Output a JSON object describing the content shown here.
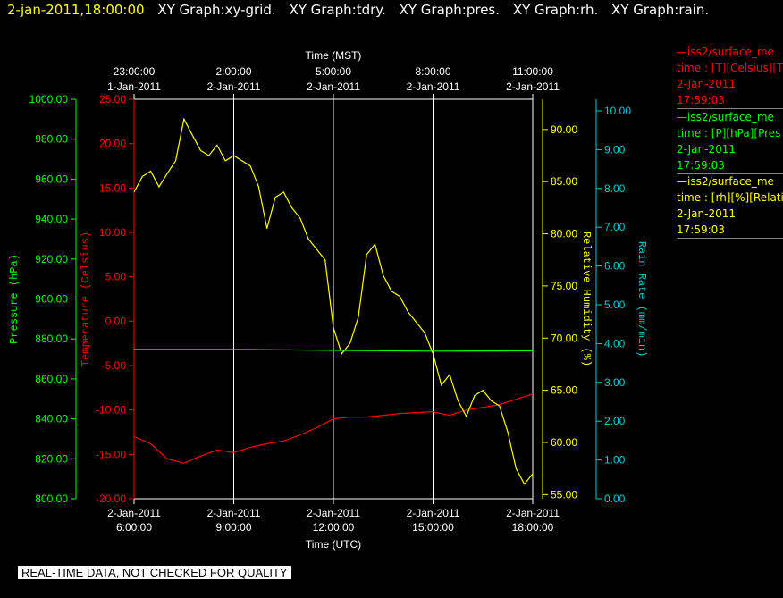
{
  "header": {
    "time": "2-jan-2011,18:00:00",
    "graphs": [
      "XY Graph:xy-grid.",
      "XY Graph:tdry.",
      "XY Graph:pres.",
      "XY Graph:rh.",
      "XY Graph:rain."
    ]
  },
  "quality_notice": "REAL-TIME DATA, NOT CHECKED FOR QUALITY",
  "legend": [
    {
      "line": "—iss2/surface_me",
      "desc": "time : [T][Celsius][T",
      "date": "2-Jan-2011",
      "time": "17:59:03",
      "color": "#ff0000"
    },
    {
      "line": "—iss2/surface_me",
      "desc": "time : [P][hPa][Pres",
      "date": "2-Jan-2011",
      "time": "17:59:03",
      "color": "#00ff00"
    },
    {
      "line": "—iss2/surface_me",
      "desc": "time : [rh][%][Relati",
      "date": "2-Jan-2011",
      "time": "17:59:03",
      "color": "#ffff00"
    }
  ],
  "chart_data": {
    "type": "line",
    "x_bottom": {
      "label": "Time (UTC)",
      "range": [
        "2011-01-02 06:00",
        "2011-01-02 18:00"
      ],
      "ticks": [
        {
          "date": "2-Jan-2011",
          "time": "6:00:00"
        },
        {
          "date": "2-Jan-2011",
          "time": "9:00:00"
        },
        {
          "date": "2-Jan-2011",
          "time": "12:00:00"
        },
        {
          "date": "2-Jan-2011",
          "time": "15:00:00"
        },
        {
          "date": "2-Jan-2011",
          "time": "18:00:00"
        }
      ]
    },
    "x_top": {
      "label": "Time (MST)",
      "ticks": [
        {
          "time": "23:00:00",
          "date": "1-Jan-2011"
        },
        {
          "time": "2:00:00",
          "date": "2-Jan-2011"
        },
        {
          "time": "5:00:00",
          "date": "2-Jan-2011"
        },
        {
          "time": "8:00:00",
          "date": "2-Jan-2011"
        },
        {
          "time": "11:00:00",
          "date": "2-Jan-2011"
        }
      ]
    },
    "y_axes": [
      {
        "id": "pres",
        "label": "Pressure (hPa)",
        "color": "#00ff00",
        "range": [
          800,
          1000
        ],
        "ticks": [
          "1000.00",
          "980.00",
          "960.00",
          "940.00",
          "920.00",
          "900.00",
          "880.00",
          "860.00",
          "840.00",
          "820.00",
          "800.00"
        ]
      },
      {
        "id": "temp",
        "label": "Temperature (Celsius)",
        "color": "#ff0000",
        "range": [
          -20,
          25
        ],
        "ticks": [
          "25.00",
          "20.00",
          "15.00",
          "10.00",
          "5.00",
          "0.00",
          "-5.00",
          "-10.00",
          "-15.00",
          "-20.00"
        ]
      },
      {
        "id": "rh",
        "label": "Relative Humidity (%)",
        "color": "#ffff00",
        "range": [
          54.6,
          92.9
        ],
        "ticks": [
          "90.00",
          "85.00",
          "80.00",
          "75.00",
          "70.00",
          "65.00",
          "60.00",
          "55.00"
        ]
      },
      {
        "id": "rain",
        "label": "Rain Rate (mm/min)",
        "color": "#00cccc",
        "range": [
          0,
          10.3
        ],
        "ticks": [
          "10.00",
          "9.00",
          "8.00",
          "7.00",
          "6.00",
          "5.00",
          "4.00",
          "3.00",
          "2.00",
          "1.00",
          "0.00"
        ]
      }
    ],
    "series": [
      {
        "axis": "temp",
        "color": "#ff0000",
        "x": [
          "2011-01-02 06:00",
          "2011-01-02 06:30",
          "2011-01-02 07:00",
          "2011-01-02 07:30",
          "2011-01-02 08:00",
          "2011-01-02 08:30",
          "2011-01-02 09:00",
          "2011-01-02 09:30",
          "2011-01-02 10:00",
          "2011-01-02 10:30",
          "2011-01-02 11:00",
          "2011-01-02 11:30",
          "2011-01-02 12:00",
          "2011-01-02 12:30",
          "2011-01-02 13:00",
          "2011-01-02 13:30",
          "2011-01-02 14:00",
          "2011-01-02 14:30",
          "2011-01-02 15:00",
          "2011-01-02 15:30",
          "2011-01-02 16:00",
          "2011-01-02 16:30",
          "2011-01-02 17:00",
          "2011-01-02 17:30",
          "2011-01-02 18:00"
        ],
        "y": [
          -13.0,
          -13.8,
          -15.5,
          -16.0,
          -15.2,
          -14.5,
          -14.8,
          -14.2,
          -13.8,
          -13.5,
          -12.8,
          -12.0,
          -11.0,
          -10.8,
          -10.8,
          -10.6,
          -10.4,
          -10.3,
          -10.2,
          -10.6,
          -10.0,
          -9.7,
          -9.4,
          -8.8,
          -8.2
        ]
      },
      {
        "axis": "pres",
        "color": "#00ff00",
        "x": [
          "2011-01-02 06:00",
          "2011-01-02 09:00",
          "2011-01-02 12:00",
          "2011-01-02 15:00",
          "2011-01-02 18:00"
        ],
        "y": [
          874.8,
          874.8,
          874.3,
          873.9,
          874.1
        ]
      },
      {
        "axis": "rh",
        "color": "#ffff00",
        "x": [
          "2011-01-02 06:00",
          "2011-01-02 06:15",
          "2011-01-02 06:30",
          "2011-01-02 06:45",
          "2011-01-02 07:00",
          "2011-01-02 07:15",
          "2011-01-02 07:30",
          "2011-01-02 07:45",
          "2011-01-02 08:00",
          "2011-01-02 08:15",
          "2011-01-02 08:30",
          "2011-01-02 08:45",
          "2011-01-02 09:00",
          "2011-01-02 09:15",
          "2011-01-02 09:30",
          "2011-01-02 09:45",
          "2011-01-02 10:00",
          "2011-01-02 10:15",
          "2011-01-02 10:30",
          "2011-01-02 10:45",
          "2011-01-02 11:00",
          "2011-01-02 11:15",
          "2011-01-02 11:30",
          "2011-01-02 11:45",
          "2011-01-02 12:00",
          "2011-01-02 12:15",
          "2011-01-02 12:30",
          "2011-01-02 12:45",
          "2011-01-02 13:00",
          "2011-01-02 13:15",
          "2011-01-02 13:30",
          "2011-01-02 13:45",
          "2011-01-02 14:00",
          "2011-01-02 14:15",
          "2011-01-02 14:30",
          "2011-01-02 14:45",
          "2011-01-02 15:00",
          "2011-01-02 15:15",
          "2011-01-02 15:30",
          "2011-01-02 15:45",
          "2011-01-02 16:00",
          "2011-01-02 16:15",
          "2011-01-02 16:30",
          "2011-01-02 16:45",
          "2011-01-02 17:00",
          "2011-01-02 17:15",
          "2011-01-02 17:30",
          "2011-01-02 17:45",
          "2011-01-02 18:00"
        ],
        "y": [
          84.0,
          85.5,
          86.0,
          84.5,
          85.8,
          87.0,
          91.0,
          89.5,
          88.0,
          87.5,
          88.5,
          87.0,
          87.5,
          87.0,
          86.5,
          84.5,
          80.5,
          83.5,
          84.0,
          82.5,
          81.5,
          79.5,
          78.5,
          77.5,
          71.0,
          68.5,
          69.5,
          72.0,
          78.0,
          79.0,
          76.0,
          74.5,
          74.0,
          72.5,
          71.5,
          70.5,
          68.5,
          65.5,
          66.5,
          64.0,
          62.5,
          64.5,
          65.0,
          64.0,
          63.5,
          61.0,
          57.5,
          56.0,
          57.0
        ]
      },
      {
        "axis": "rain",
        "color": "#00cccc",
        "x": [],
        "y": []
      }
    ]
  }
}
